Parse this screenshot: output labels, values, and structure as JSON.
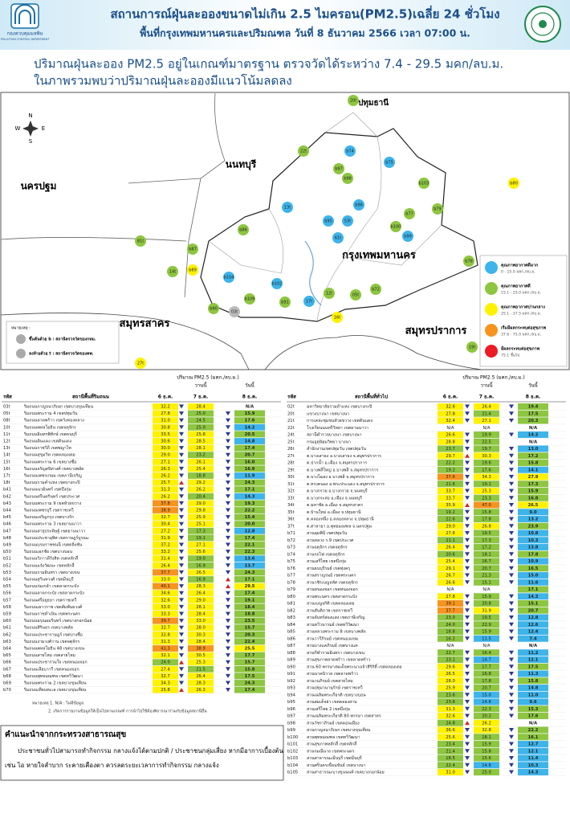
{
  "header": {
    "logo_th": "กองควบคุมมลพิษ",
    "logo_en": "POLLUTION CONTROL DEPARTMENT",
    "title": "สถานการณ์ฝุ่นละอองขนาดไม่เกิน 2.5 ไมครอน(PM2.5)เฉลี่ย 24 ชั่วโมง",
    "subtitle": "พื้นที่กรุงเทพมหานครและปริมณฑล วันที่ 8 ธันวาคม 2566 เวลา 07:00 น."
  },
  "summary": [
    "ปริมาณฝุ่นละออง PM2.5 อยู่ในเกณฑ์มาตรฐาน ตรวจวัดได้ระหว่าง 7.4 - 29.5 มคก/ลบ.ม.",
    "ในภาพรวมพบว่าปริมาณฝุ่นละอองมีแนวโน้มลดลง"
  ],
  "map": {
    "compass": [
      "N",
      "S",
      "E",
      "W"
    ],
    "provinces": [
      "ปทุมธานี",
      "นนทบุรี",
      "นครปฐม",
      "กรุงเทพมหานคร",
      "สมุทรสาคร",
      "สมุทรปราการ"
    ],
    "note_title": "หมายเหตุ :",
    "notes": [
      "ขึ้นต้นด้วย b : สถานีตรวจวัดของกทม.",
      "ลงท้ายด้วย t : สถานีตรวจวัดของคพ."
    ],
    "markers": [
      {
        "label": "20t",
        "level": 1
      },
      {
        "label": "22t",
        "level": 1
      },
      {
        "label": "b74",
        "level": 0
      },
      {
        "label": "b75",
        "level": 0
      },
      {
        "label": "b97",
        "level": 1
      },
      {
        "label": "b98",
        "level": 1
      },
      {
        "label": "b103",
        "level": 1
      },
      {
        "label": "b80",
        "level": 2
      },
      {
        "label": "13t",
        "level": 0
      },
      {
        "label": "b96",
        "level": 0
      },
      {
        "label": "b77",
        "level": 1
      },
      {
        "label": "b79",
        "level": 1
      },
      {
        "label": "53t",
        "level": 0
      },
      {
        "label": "b95",
        "level": 0
      },
      {
        "label": "b86",
        "level": 1
      },
      {
        "label": "81t",
        "level": 1
      },
      {
        "label": "b87",
        "level": 1
      },
      {
        "label": "61t",
        "level": 0
      },
      {
        "label": "b100",
        "level": 1
      },
      {
        "label": "b99",
        "level": 0
      },
      {
        "label": "b78",
        "level": 1
      },
      {
        "label": "14t",
        "level": 1
      },
      {
        "label": "b89",
        "level": 2
      },
      {
        "label": "b104",
        "level": 0
      },
      {
        "label": "b102",
        "level": 0
      },
      {
        "label": "12t",
        "level": 1
      },
      {
        "label": "b72",
        "level": 1
      },
      {
        "label": "b90",
        "level": 1
      },
      {
        "label": "03t",
        "level": null
      },
      {
        "label": "17t",
        "level": 0
      },
      {
        "label": "b91",
        "level": 1
      },
      {
        "label": "b109",
        "level": 1
      },
      {
        "label": "05t",
        "level": 1
      },
      {
        "label": "16t",
        "level": 2
      },
      {
        "label": "19t",
        "level": 1
      },
      {
        "label": "27t",
        "level": 2
      }
    ]
  },
  "legend": [
    {
      "name": "คุณภาพอากาศดีมาก",
      "range": "0 - 15.0 มคก./ลบ.ม.",
      "color": "#3db4ea"
    },
    {
      "name": "คุณภาพอากาศดี",
      "range": "15.1 - 25.0 มคก./ลบ.ม.",
      "color": "#8dc63f"
    },
    {
      "name": "คุณภาพอากาศปานกลาง",
      "range": "25.1 - 37.5 มคก./ลบ.ม.",
      "color": "#fff200"
    },
    {
      "name": "เริ่มมีผลกระทบต่อสุขภาพ",
      "range": "37.6 - 75.0 มคก./ลบ.ม.",
      "color": "#f7941d"
    },
    {
      "name": "มีผลกระทบต่อสุขภาพ",
      "range": "75.1 ขึ้นไป",
      "color": "#ed1c24"
    }
  ],
  "tables": [
    {
      "unit": "ปริมาณ PM2.5 (มคก./ลบ.ม.)",
      "headers": [
        "รหัส",
        "สถานีพื้นที่ริมถนน",
        "6 ธ.ค.",
        "7 ธ.ค.",
        "8 ธ.ค."
      ],
      "day_labels": [
        "วานนี้",
        "วันนี้"
      ],
      "rows": [
        [
          "03t",
          "ริมถนนกาญจนาภิเษก เขตบางขุนเทียน",
          "32.2",
          "28.4",
          "N/A"
        ],
        [
          "05t",
          "ริมถนนพระราม 4 เขตปทุมวัน",
          "27.8",
          "25.0",
          "15.9"
        ],
        [
          "08t",
          "ริมถนนลาดพร้าว เขตวังทองหลาง",
          "31.0",
          "24.5",
          "17.6"
        ],
        [
          "10t",
          "ริมถนนพหลโยธิน เขตจตุจักร",
          "30.8",
          "25.0",
          "14.2"
        ],
        [
          "11t",
          "ริมถนนอินทรพิทักษ์ เขตธนบุรี",
          "33.5",
          "25.8",
          "20.5"
        ],
        [
          "12t",
          "ริมถนนดินแดง เขตดินแดง",
          "30.6",
          "28.5",
          "14.8"
        ],
        [
          "13t",
          "ริมถนนราชวิถี เขตพญาไท",
          "30.0",
          "28.1",
          "17.4"
        ],
        [
          "14t",
          "ริมถนนสุขุมวิท เขตคลองเตย",
          "29.0",
          "23.2",
          "20.7"
        ],
        [
          "15t",
          "ริมถนนพระราม 6 เขตบางซื่อ",
          "27.1",
          "26.1",
          "16.0"
        ],
        [
          "16t",
          "ริมถนนจรัญสนิทวงศ์ เขตบางพลัด",
          "26.3",
          "25.4",
          "16.9"
        ],
        [
          "17t",
          "ริมถนนเพชรเกษม เขตภาษีเจริญ",
          "26.2",
          "18.8",
          "11.9"
        ],
        [
          "18t",
          "ริมถนนรามคำแหง เขตบางกะปิ",
          "25.7",
          "29.2",
          "24.3"
        ],
        [
          "b41",
          "ริมถนนนวมินทร์ เขตบึงกุ่ม",
          "31.3",
          "26.2",
          "17.1"
        ],
        [
          "b42",
          "ริมถนนศรีนครินทร์ เขตประเวศ",
          "26.2",
          "20.4",
          "14.3"
        ],
        [
          "b43",
          "ริมถนนพระราม 9 เขตห้วยขวาง",
          "37.8",
          "29.0",
          "19.3"
        ],
        [
          "b44",
          "ริมถนนเพชรบุรี เขตราชเทวี",
          "38.9",
          "29.8",
          "22.2"
        ],
        [
          "b45",
          "ริมถนนเจริญกรุง เขตบางรัก",
          "32.7",
          "25.9",
          "15.4"
        ],
        [
          "b46",
          "ริมถนนพระราม 3 เขตยานนาวา",
          "30.4",
          "25.1",
          "20.0"
        ],
        [
          "b47",
          "ริมถนนสาธุประดิษฐ์ เขตยานนาวา",
          "27.2",
          "17.3",
          "12.8"
        ],
        [
          "b48",
          "ริมถนนประชาอุทิศ เขตราษฎร์บูรณะ",
          "31.9",
          "19.1",
          "17.4"
        ],
        [
          "b49",
          "ริมถนนบรมราชชนนี เขตตลิ่งชัน",
          "37.2",
          "27.1",
          "22.1"
        ],
        [
          "b50",
          "ริมถนนเอกชัย เขตบางบอน",
          "33.2",
          "25.6",
          "22.3"
        ],
        [
          "b51",
          "ริมถนนวิภาวดีรังสิต เขตหลักสี่",
          "31.4",
          "19.0",
          "13.6"
        ],
        [
          "b52",
          "ริมถนนแจ้งวัฒนะ เขตหลักสี่",
          "26.4",
          "16.9",
          "13.7"
        ],
        [
          "b53",
          "ริมถนนรามอินทรา เขตบางเขน",
          "37.7",
          "26.5",
          "24.3"
        ],
        [
          "b54",
          "ริมถนนสุวินทวงศ์ เขตมีนบุรี",
          "33.0",
          "16.9",
          "17.1"
        ],
        [
          "b55",
          "ริมถนนร่มเกล้า เขตลาดกระบัง",
          "40.1",
          "28.3",
          "29.5"
        ],
        [
          "b56",
          "ริมถนนลาดกระบัง เขตลาดกระบัง",
          "34.6",
          "26.4",
          "17.4"
        ],
        [
          "b57",
          "ริมถนนศรีอยุธยา เขตราชเทวี",
          "32.6",
          "29.0",
          "19.1"
        ],
        [
          "b58",
          "ริมถนนเยาวราช เขตสัมพันธวงศ์",
          "33.0",
          "28.1",
          "18.4"
        ],
        [
          "b59",
          "ริมถนนราชดำเนิน เขตพระนคร",
          "33.3",
          "28.4",
          "18.8"
        ],
        [
          "b60",
          "ริมถนนอรุณอมรินทร์ เขตบางกอกน้อย",
          "39.7",
          "33.0",
          "23.5"
        ],
        [
          "b61",
          "ริมถนนสิรินธร เขตบางพลัด",
          "32.7",
          "28.0",
          "15.7"
        ],
        [
          "b62",
          "ริมถนนประชาราษฎร์ เขตบางซื่อ",
          "32.8",
          "30.3",
          "20.3"
        ],
        [
          "b63",
          "ริมถนนงามวงศ์วาน เขตจตุจักร",
          "31.3",
          "28.4",
          "22.4"
        ],
        [
          "b64",
          "ริมถนนพหลโยธิน 48 เขตบางเขน",
          "41.3",
          "38.9",
          "25.5"
        ],
        [
          "b65",
          "ริมถนนสายไหม เขตสายไหม",
          "32.1",
          "30.5",
          "17.7"
        ],
        [
          "b66",
          "ริมถนนประชาร่วมใจ เขตหนองจอก",
          "24.0",
          "25.3",
          "15.7"
        ],
        [
          "b67",
          "ริมถนนเลียบวารี เขตหนองจอก",
          "27.4",
          "21.5",
          "15.8"
        ],
        [
          "b68",
          "ริมถนนพุทธมณฑล เขตทวีวัฒนา",
          "32.7",
          "26.4",
          "17.5"
        ],
        [
          "b69",
          "ริมถนนพระราม 2 เขตบางขุนเทียน",
          "34.3",
          "28.3",
          "24.3"
        ],
        [
          "b70",
          "ริมถนนเทียนทะเล เขตบางขุนเทียน",
          "25.8",
          "26.3",
          "17.4"
        ]
      ],
      "footnotes": [
        "หมายเหตุ 1. N/A : ไม่มีข้อมูล",
        "2. เกิดการรายงานข้อมูลให้เป็นไปตามเกณฑ์ การนำไปใช้ต้องพิจารณาร่วมกับข้อมูลสถานีอื่น"
      ]
    },
    {
      "unit": "ปริมาณ PM2.5 (มคก./ลบ.ม.)",
      "headers": [
        "รหัส",
        "สถานีพื้นที่ทั่วไป",
        "6 ธ.ค.",
        "7 ธ.ค.",
        "8 ธ.ค."
      ],
      "day_labels": [
        "วานนี้",
        "วันนี้"
      ],
      "rows": [
        [
          "02t",
          "มหาวิทยาลัยรามคำแหง เขตบางกะปิ",
          "32.6",
          "26.4",
          "19.4"
        ],
        [
          "20t",
          "แขวงบางนา เขตบางนา",
          "27.8",
          "21.4",
          "17.5"
        ],
        [
          "21t",
          "การเคหะชุมชนห้วยขวาง เขตดินแดง",
          "32.4",
          "27.1",
          "20.3"
        ],
        [
          "22t",
          "โรงเรียนนนทรีวิทยา เขตยานนาวา",
          "N/A",
          "N/A",
          "N/A"
        ],
        [
          "24t",
          "สถานีตำรวจบางนา เขตบางนา",
          "26.6",
          "19.9",
          "14.2"
        ],
        [
          "25t",
          "กรมอุตุนิยมวิทยา บางนา",
          "28.8",
          "22.5",
          "N/A"
        ],
        [
          "26t",
          "สำนักงานเขตปทุมวัน เขตปทุมวัน",
          "23.7",
          "19.7",
          "13.0"
        ],
        [
          "27t",
          "ต.บางเสาธง อ.บางเสาธง จ.สมุทรปราการ",
          "29.7",
          "30.3",
          "17.2"
        ],
        [
          "28t",
          "ต.ปากน้ำ อ.เมือง จ.สมุทรปราการ",
          "22.2",
          "19.6",
          "15.8"
        ],
        [
          "29t",
          "ต.บางพลีใหญ่ อ.บางพลี จ.สมุทรปราการ",
          "19.2",
          "17.6",
          "14.1"
        ],
        [
          "30t",
          "ต.บางโฉลง อ.บางพลี จ.สมุทรปราการ",
          "37.6",
          "34.3",
          "27.9"
        ],
        [
          "31t",
          "ต.ทรงคนอง อ.พระประแดง จ.สมุทรปราการ",
          "21.6",
          "19.1",
          "17.3"
        ],
        [
          "32t",
          "ต.บางกรวย อ.บางกรวย จ.นนทบุรี",
          "33.7",
          "25.3",
          "15.9"
        ],
        [
          "33t",
          "ต.บางกระสอ อ.เมือง จ.นนทบุรี",
          "33.7",
          "23.3",
          "16.8"
        ],
        [
          "34t",
          "ต.มหาชัย อ.เมือง จ.สมุทรสาคร",
          "35.9",
          "47.0",
          "26.5"
        ],
        [
          "35t",
          "ต.บ้านใหม่ อ.เมือง จ.ปทุมธานี",
          "19.2",
          "15.8",
          "9.0"
        ],
        [
          "36t",
          "ต.คลองหนึ่ง อ.คลองหลวง จ.ปทุมธานี",
          "22.6",
          "17.8",
          "13.2"
        ],
        [
          "37t",
          "ต.ศาลายา อ.พุทธมณฑล จ.นครปฐม",
          "29.0",
          "26.8",
          "23.9"
        ],
        [
          "b71",
          "สวนลุมพินี เขตปทุมวัน",
          "27.6",
          "19.5",
          "10.8"
        ],
        [
          "b72",
          "สวนหลวง ร.9 เขตประเวศ",
          "21.1",
          "17.3",
          "10.3"
        ],
        [
          "b73",
          "สวนจตุจักร เขตจตุจักร",
          "26.4",
          "17.2",
          "13.8"
        ],
        [
          "b74",
          "สวนรถไฟ เขตจตุจักร",
          "20.6",
          "18.1",
          "17.8"
        ],
        [
          "b75",
          "สวนเสรีไทย เขตบึงกุ่ม",
          "25.4",
          "16.7",
          "10.9"
        ],
        [
          "b76",
          "สวนธนบุรีรมย์ เขตทุ่งครุ",
          "29.1",
          "20.7",
          "16.5"
        ],
        [
          "b77",
          "สวนสราญรมย์ เขตพระนคร",
          "26.7",
          "21.3",
          "15.0"
        ],
        [
          "b78",
          "สวนวชิรเบญจทัศ เขตจตุจักร",
          "26.6",
          "15.1",
          "11.6"
        ],
        [
          "b79",
          "สวนหนองจอก เขตหนองจอก",
          "N/A",
          "N/A",
          "17.1"
        ],
        [
          "b80",
          "สวนพระนคร เขตลาดกระบัง",
          "27.8",
          "15.9",
          "14.3"
        ],
        [
          "b81",
          "สวนเบญจกิติ เขตคลองเตย",
          "39.1",
          "20.8",
          "15.1"
        ],
        [
          "b82",
          "สวนสันติภาพ เขตราชเทวี",
          "37.7",
          "31.9",
          "20.7"
        ],
        [
          "b83",
          "สวนจันทร์ส่องแสง เขตภาษีเจริญ",
          "23.0",
          "19.5",
          "12.8"
        ],
        [
          "b84",
          "สวนทวีวนารมย์ เขตทวีวัฒนา",
          "24.0",
          "22.9",
          "12.6"
        ],
        [
          "b85",
          "สวนหลวงพระราม 8 เขตบางพลัด",
          "18.8",
          "15.9",
          "12.4"
        ],
        [
          "b86",
          "สวนวารีภิรมย์ เขตหนองแขม",
          "16.2",
          "11.5",
          "7.4"
        ],
        [
          "b87",
          "สวนบางแคภิรมย์ เขตบางแค",
          "N/A",
          "N/A",
          "N/A"
        ],
        [
          "b88",
          "สวนกีฬารามอินทรา เขตบางเขน",
          "22.7",
          "16.4",
          "11.2"
        ],
        [
          "b89",
          "สวนสุขภาพลาดพร้าว เขตลาดพร้าว",
          "23.1",
          "14.7",
          "12.1"
        ],
        [
          "b90",
          "สวน 60 พรรษาสมเด็จพระนางเจ้าสิริกิติ์ เขตคลองเตย",
          "29.6",
          "17.7",
          "17.5"
        ],
        [
          "b91",
          "สวนนาคนิวาส เขตลาดพร้าว",
          "26.5",
          "16.8",
          "11.3"
        ],
        [
          "b92",
          "สวนวนภิรมย์ เขตสายไหม",
          "28.0",
          "17.8",
          "15.8"
        ],
        [
          "b93",
          "สวนปทุมวนานุรักษ์ เขตราชเทวี",
          "25.9",
          "20.7",
          "14.8"
        ],
        [
          "b94",
          "สวนเฉลิมพระเกียรติ เขตบางบอน",
          "23.6",
          "15.0",
          "11.0"
        ],
        [
          "b95",
          "สวนสมเด็จย่า เขตคลองสาน",
          "23.6",
          "14.8",
          "9.6"
        ],
        [
          "b96",
          "สวนเสรีไทย 2 เขตบึงกุ่ม",
          "31.3",
          "22.3",
          "15.3"
        ],
        [
          "b97",
          "สวนเฉลิมพระเกียรติ 80 พรรษา เขตสาทร",
          "32.6",
          "20.2",
          "17.6"
        ],
        [
          "b98",
          "สวนวัชราภิรมย์ เขตดอนเมือง",
          "24.8",
          "26.2",
          "N/A"
        ],
        [
          "b99",
          "สวนกาญจนาภิเษก เขตบางขุนเทียน",
          "36.6",
          "32.8",
          "22.2"
        ],
        [
          "b100",
          "สวนพุทธมณฑล เขตทวีวัฒนา",
          "25.6",
          "18.1",
          "16.1"
        ],
        [
          "b101",
          "สวนสุขภาพหลักสี่ เขตหลักสี่",
          "23.4",
          "15.9",
          "12.7"
        ],
        [
          "b102",
          "สวนรมณีนาถ เขตพระนคร",
          "21.4",
          "15.8",
          "12.1"
        ],
        [
          "b103",
          "สวนสาธารณะมีนบุรี เขตมีนบุรี",
          "18.5",
          "15.6",
          "11.4"
        ],
        [
          "b104",
          "สวนศรีนครเขื่อนขันธ์ เขตบางนา",
          "22.4",
          "14.8",
          "10.3"
        ],
        [
          "b105",
          "สวนสาธารณะบางขุนนนท์ เขตบางกอกน้อย",
          "31.0",
          "25.0",
          "14.3"
        ]
      ]
    }
  ],
  "advice": {
    "title": "คำแนะนำจากกระทรวงสาธารณสุข",
    "lines": [
      "ประชาชนทั่วไปสามารถทำกิจกรรม กลางแจ้งได้ตามปกติ / ประชาชนกลุ่มเสี่ยง หากมีอาการเบื้องต้น",
      "เช่น ไอ หายใจลำบาก ระคายเคืองตา ควรลดระยะเวลาการทำกิจกรรม กลางแจ้ง"
    ]
  }
}
